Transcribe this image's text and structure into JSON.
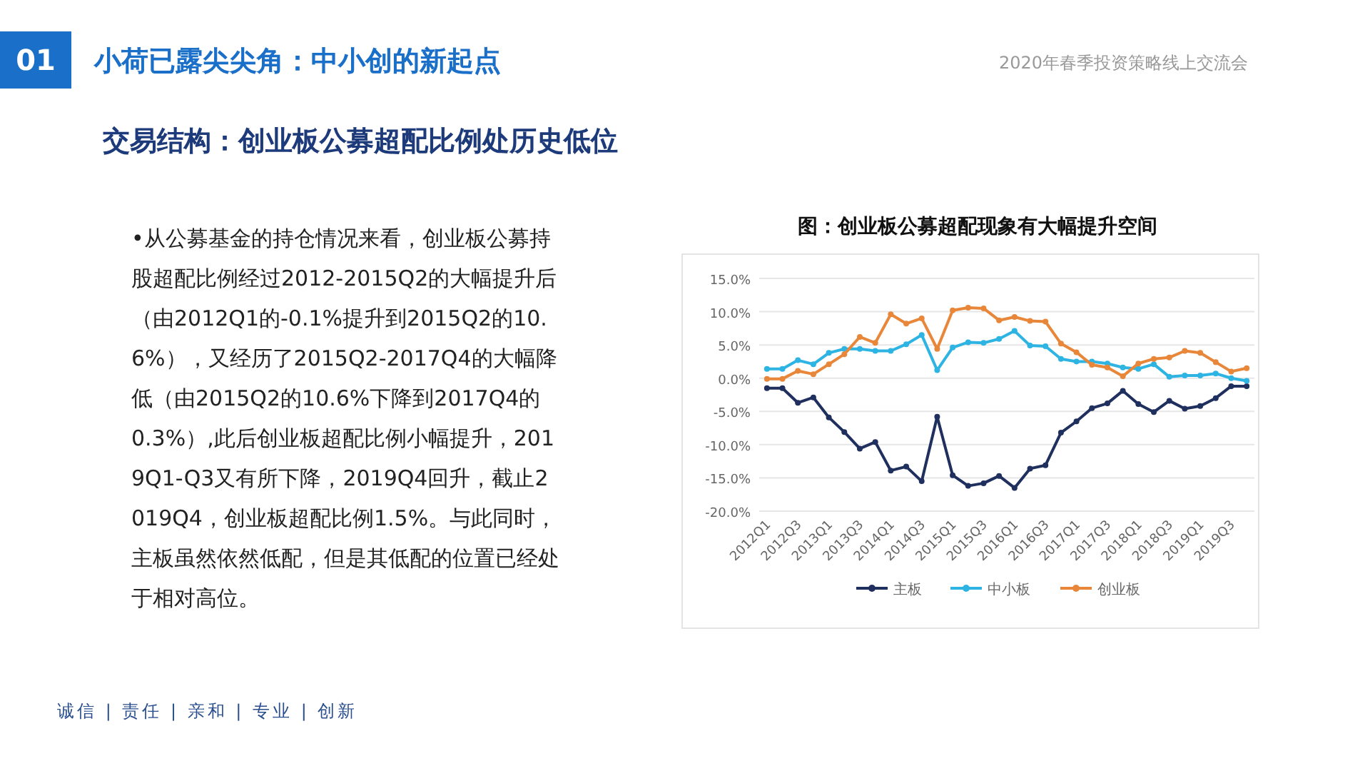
{
  "chart_data": {
    "type": "line",
    "title": "图：创业板公募超配现象有大幅提升空间",
    "annotations": [
      "01",
      "小荷已露尖尖角：中小创的新起点",
      "2020年春季投资策略线上交流会",
      "交易结构：创业板公募超配比例处历史低位",
      "•从公募基金的持仓情况来看，创业板公募持股超配比例经过2012-2015Q2的大幅提升后（由2012Q1的-0.1%提升到2015Q2的10.6%），又经历了2015Q2-2017Q4的大幅降低（由2015Q2的10.6%下降到2017Q4的0.3%）,此后创业板超配比例小幅提升，2019Q1-Q3又有所下降，2019Q4回升，截止2019Q4，创业板超配比例1.5%。与此同时，主板虽然依然低配，但是其低配的位置已经处于相对高位。",
      "诚信 | 责任 | 亲和 | 专业 | 创新"
    ],
    "categories": [
      "2012Q1",
      null,
      "2012Q3",
      null,
      "2013Q1",
      null,
      "2013Q3",
      null,
      "2014Q1",
      null,
      "2014Q3",
      null,
      "2015Q1",
      null,
      "2015Q3",
      null,
      "2016Q1",
      null,
      "2016Q3",
      null,
      "2017Q1",
      null,
      "2017Q3",
      null,
      "2018Q1",
      null,
      "2018Q3",
      null,
      "2019Q1",
      null,
      "2019Q3",
      null
    ],
    "series": [
      {
        "name": "主板",
        "color": "#1f2f5e",
        "values": [
          -1.5,
          -1.5,
          -3.7,
          -2.9,
          -5.9,
          -8.1,
          -10.6,
          -9.6,
          -13.9,
          -13.3,
          -15.5,
          -5.8,
          -14.6,
          -16.2,
          -15.8,
          -14.7,
          -16.5,
          -13.6,
          -13.1,
          -8.2,
          -6.5,
          -4.5,
          -3.8,
          -1.9,
          -3.9,
          -5.1,
          -3.4,
          -4.6,
          -4.2,
          -3.0,
          -1.2,
          -1.2
        ]
      },
      {
        "name": "中小板",
        "color": "#2eb4e3",
        "values": [
          1.4,
          1.4,
          2.7,
          2.1,
          3.8,
          4.4,
          4.4,
          4.1,
          4.1,
          5.1,
          6.5,
          1.2,
          4.6,
          5.4,
          5.3,
          5.9,
          7.1,
          4.9,
          4.8,
          2.9,
          2.5,
          2.5,
          2.2,
          1.6,
          1.4,
          2.1,
          0.2,
          0.4,
          0.4,
          0.7,
          0.0,
          -0.4
        ]
      },
      {
        "name": "创业板",
        "color": "#e8873a",
        "values": [
          -0.1,
          -0.1,
          1.1,
          0.6,
          2.1,
          3.6,
          6.2,
          5.3,
          9.6,
          8.2,
          9.0,
          4.4,
          10.2,
          10.6,
          10.5,
          8.7,
          9.2,
          8.6,
          8.5,
          5.2,
          3.9,
          2.0,
          1.6,
          0.3,
          2.2,
          2.9,
          3.1,
          4.1,
          3.8,
          2.4,
          1.0,
          1.5
        ]
      }
    ],
    "ylim": [
      -20,
      15
    ],
    "yticks": [
      {
        "value": -20,
        "label": "-20.0%"
      },
      {
        "value": -15,
        "label": "-15.0%"
      },
      {
        "value": -10,
        "label": "-10.0%"
      },
      {
        "value": -5,
        "label": "-5.0%"
      },
      {
        "value": 0,
        "label": "0.0%"
      },
      {
        "value": 5,
        "label": "5.0%"
      },
      {
        "value": 10,
        "label": "10.0%"
      },
      {
        "value": 15,
        "label": "15.0%"
      }
    ],
    "grid": "y",
    "legend": "bottom",
    "marker": "circle",
    "line_style": "solid"
  }
}
